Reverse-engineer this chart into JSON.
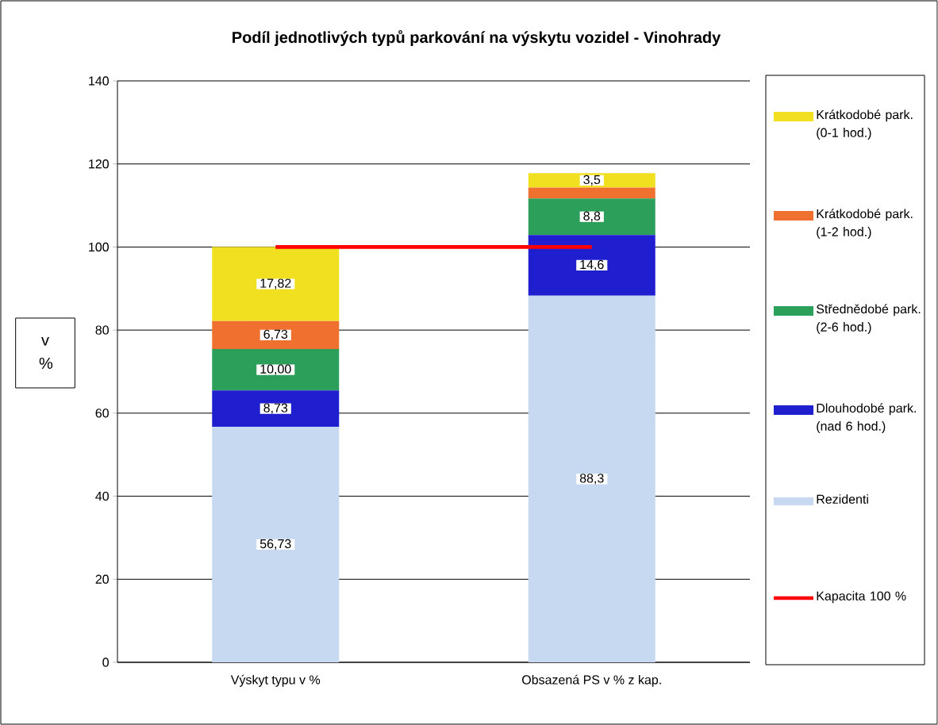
{
  "chart_data": {
    "type": "bar",
    "title": "Podíl jednotlivých typů parkování na výskytu vozidel  - Vinohrady",
    "ylabel": "v %",
    "categories": [
      "Výskyt typu v %",
      "Obsazená PS v % z kap."
    ],
    "stacked": true,
    "series": [
      {
        "name": "Rezidenti",
        "color": "#c6d9f0",
        "values": [
          56.73,
          88.3
        ],
        "value_labels": [
          "56,73",
          "88,3"
        ]
      },
      {
        "name": "Dlouhodobé park. (nad 6 hod.)",
        "color": "#1f1fd0",
        "values": [
          8.73,
          14.6
        ],
        "value_labels": [
          "8,73",
          "14,6"
        ]
      },
      {
        "name": "Střednědobé park. (2-6 hod.)",
        "color": "#2ca05a",
        "values": [
          10.0,
          8.8
        ],
        "value_labels": [
          "10,00",
          "8,8"
        ]
      },
      {
        "name": "Krátkodobé park. (1-2 hod.)",
        "color": "#f07030",
        "values": [
          6.73,
          2.6
        ],
        "value_labels": [
          "6,73",
          null
        ]
      },
      {
        "name": "Krátkodobé park. (0-1 hod.)",
        "color": "#f0e020",
        "values": [
          17.82,
          3.5
        ],
        "value_labels": [
          "17,82",
          "3,5"
        ]
      },
      {
        "name": "Kapacita 100 %",
        "type": "line",
        "color": "#ff0000",
        "marker": "none",
        "values": [
          100,
          100
        ]
      }
    ],
    "ylim": [
      0,
      140
    ],
    "yticks": [
      0,
      20,
      40,
      60,
      80,
      100,
      120,
      140
    ],
    "grid": "y",
    "legend": "right"
  }
}
